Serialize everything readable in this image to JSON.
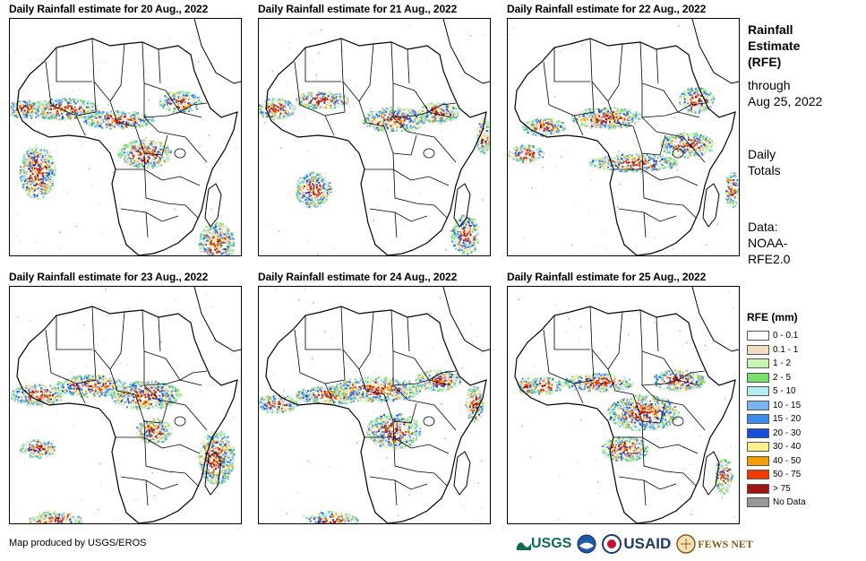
{
  "panels": [
    {
      "title": "Daily Rainfall estimate for 20 Aug., 2022",
      "seed": 20
    },
    {
      "title": "Daily Rainfall estimate for 21 Aug., 2022",
      "seed": 21
    },
    {
      "title": "Daily Rainfall estimate for 22 Aug., 2022",
      "seed": 22
    },
    {
      "title": "Daily Rainfall estimate for 23 Aug., 2022",
      "seed": 23
    },
    {
      "title": "Daily Rainfall estimate for 24 Aug., 2022",
      "seed": 24
    },
    {
      "title": "Daily Rainfall estimate for 25 Aug., 2022",
      "seed": 25
    }
  ],
  "side": {
    "heading_line1": "Rainfall",
    "heading_line2": "Estimate",
    "heading_line3": "(RFE)",
    "through_line1": "through",
    "through_line2": "Aug 25, 2022",
    "daily_line1": "Daily",
    "daily_line2": "Totals",
    "data_line1": "Data:",
    "data_line2": "NOAA-",
    "data_line3": "RFE2.0"
  },
  "legend": {
    "title": "RFE (mm)",
    "items": [
      {
        "label": "0 - 0.1",
        "color": "#ffffff"
      },
      {
        "label": "0.1 - 1",
        "color": "#f0dcc0"
      },
      {
        "label": "1 - 2",
        "color": "#c6f5b4"
      },
      {
        "label": "2 - 5",
        "color": "#78e06a"
      },
      {
        "label": "5 - 10",
        "color": "#b4eef5"
      },
      {
        "label": "10 - 15",
        "color": "#78b4f0"
      },
      {
        "label": "15 - 20",
        "color": "#3c8cf0"
      },
      {
        "label": "20 - 30",
        "color": "#1450dc"
      },
      {
        "label": "30 - 40",
        "color": "#fff08c"
      },
      {
        "label": "40 - 50",
        "color": "#f5a000"
      },
      {
        "label": "50 - 75",
        "color": "#f03c00"
      },
      {
        "label": "> 75",
        "color": "#a01414"
      },
      {
        "label": "No Data",
        "color": "#999999"
      }
    ]
  },
  "credit": "Map produced by USGS/EROS",
  "logos": {
    "usgs": "USGS",
    "noaa": "NOAA",
    "usaid": "USAID",
    "fews": "FEWS NET"
  }
}
